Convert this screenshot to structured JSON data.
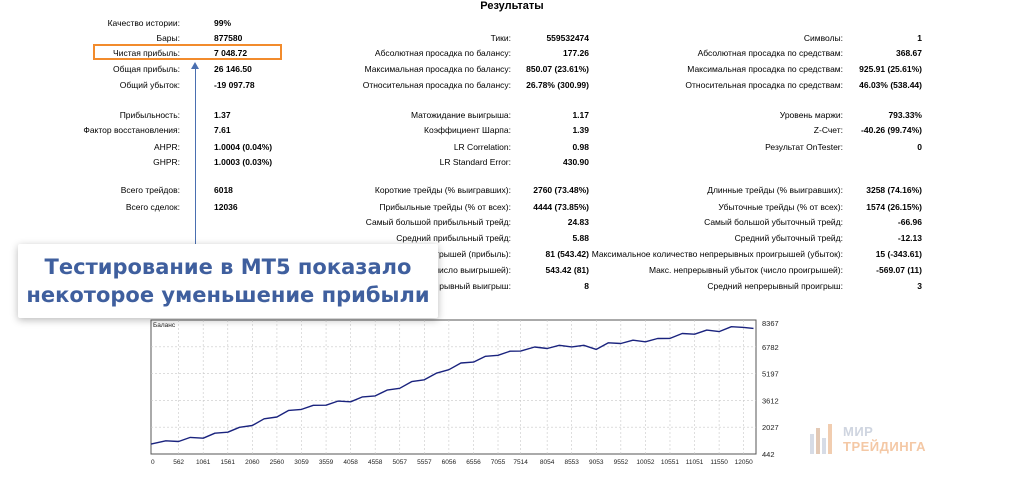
{
  "report": {
    "title": "Результаты"
  },
  "col1": [
    {
      "label": "Качество истории:",
      "value": "99%"
    },
    {
      "label": "Бары:",
      "value": "877580"
    },
    {
      "label": "Чистая прибыль:",
      "value": "7 048.72"
    },
    {
      "label": "Общая прибыль:",
      "value": "26 146.50"
    },
    {
      "label": "Общий убыток:",
      "value": "-19 097.78"
    },
    {
      "label": "Прибыльность:",
      "value": "1.37"
    },
    {
      "label": "Фактор восстановления:",
      "value": "7.61"
    },
    {
      "label": "AHPR:",
      "value": "1.0004 (0.04%)"
    },
    {
      "label": "GHPR:",
      "value": "1.0003 (0.03%)"
    },
    {
      "label": "Всего трейдов:",
      "value": "6018"
    },
    {
      "label": "Всего сделок:",
      "value": "12036"
    }
  ],
  "col2": [
    {
      "label": "Тики:",
      "value": "559532474"
    },
    {
      "label": "Абсолютная просадка по балансу:",
      "value": "177.26"
    },
    {
      "label": "Максимальная просадка по балансу:",
      "value": "850.07 (23.61%)"
    },
    {
      "label": "Относительная просадка по балансу:",
      "value": "26.78% (300.99)"
    },
    {
      "label": "Матожидание выигрыша:",
      "value": "1.17"
    },
    {
      "label": "Коэффициент Шарпа:",
      "value": "1.39"
    },
    {
      "label": "LR Correlation:",
      "value": "0.98"
    },
    {
      "label": "LR Standard Error:",
      "value": "430.90"
    },
    {
      "label": "Короткие трейды (% выигравших):",
      "value": "2760 (73.48%)"
    },
    {
      "label": "Прибыльные трейды (% от всех):",
      "value": "4444 (73.85%)"
    },
    {
      "label": "Самый большой прибыльный трейд:",
      "value": "24.83"
    },
    {
      "label": "Средний прибыльный трейд:",
      "value": "5.88"
    },
    {
      "label": "ыигрышей (прибыль):",
      "value": "81 (543.42)"
    },
    {
      "label": "число выигрышей):",
      "value": "543.42 (81)"
    },
    {
      "label": "рывный выигрыш:",
      "value": "8"
    }
  ],
  "col3": [
    {
      "label": "Символы:",
      "value": "1"
    },
    {
      "label": "Абсолютная просадка по средствам:",
      "value": "368.67"
    },
    {
      "label": "Максимальная просадка по средствам:",
      "value": "925.91 (25.61%)"
    },
    {
      "label": "Относительная просадка по средствам:",
      "value": "46.03% (538.44)"
    },
    {
      "label": "Уровень маржи:",
      "value": "793.33%"
    },
    {
      "label": "Z-Счет:",
      "value": "-40.26 (99.74%)"
    },
    {
      "label": "Результат OnTester:",
      "value": "0"
    },
    {
      "label": "Длинные трейды (% выигравших):",
      "value": "3258 (74.16%)"
    },
    {
      "label": "Убыточные трейды (% от всех):",
      "value": "1574 (26.15%)"
    },
    {
      "label": "Самый большой убыточный трейд:",
      "value": "-66.96"
    },
    {
      "label": "Средний убыточный трейд:",
      "value": "-12.13"
    },
    {
      "label": "Максимальное количество непрерывных проигрышей (убыток):",
      "value": "15 (-343.61)"
    },
    {
      "label": "Макс. непрерывный убыток (число проигрышей):",
      "value": "-569.07 (11)"
    },
    {
      "label": "Средний непрерывный проигрыш:",
      "value": "3"
    }
  ],
  "callout": {
    "line1": "Тестирование в МТ5 показало",
    "line2": "некоторое уменьшение прибыли"
  },
  "chart_data": {
    "type": "line",
    "ylabel": "Баланс",
    "x_ticks": [
      "0",
      "562",
      "1061",
      "1561",
      "2060",
      "2560",
      "3059",
      "3559",
      "4058",
      "4558",
      "5057",
      "5557",
      "6056",
      "6556",
      "7055",
      "7514",
      "8054",
      "8553",
      "9053",
      "9552",
      "10052",
      "10551",
      "11051",
      "11550",
      "12050"
    ],
    "y_ticks": [
      "8367",
      "6782",
      "5197",
      "3612",
      "2027",
      "442"
    ],
    "ylim": [
      442,
      8367
    ],
    "xlim": [
      0,
      12300
    ],
    "series_color": "#1a237e",
    "series": [
      {
        "x": [
          0,
          300,
          562,
          800,
          1061,
          1300,
          1561,
          1800,
          2060,
          2300,
          2560,
          2800,
          3059,
          3300,
          3559,
          3800,
          4058,
          4300,
          4558,
          4800,
          5057,
          5300,
          5557,
          5800,
          6056,
          6300,
          6556,
          6800,
          7055,
          7300,
          7514,
          7800,
          8054,
          8300,
          8553,
          8800,
          9053,
          9300,
          9552,
          9800,
          10052,
          10300,
          10551,
          10800,
          11051,
          11300,
          11550,
          11800,
          12050,
          12250
        ],
        "y": [
          1100,
          1150,
          1250,
          1350,
          1450,
          1600,
          1800,
          1950,
          2200,
          2450,
          2700,
          2950,
          3150,
          3250,
          3400,
          3500,
          3600,
          3750,
          3950,
          4150,
          4400,
          4650,
          4900,
          5150,
          5500,
          5750,
          5950,
          6150,
          6350,
          6450,
          6600,
          6700,
          6750,
          6800,
          6850,
          6800,
          6700,
          6950,
          7050,
          7100,
          7150,
          7200,
          7350,
          7500,
          7600,
          7700,
          7750,
          7900,
          8000,
          7800
        ]
      }
    ]
  },
  "logo": {
    "line1": "МИР",
    "line2": "ТРЕЙДИНГА"
  }
}
